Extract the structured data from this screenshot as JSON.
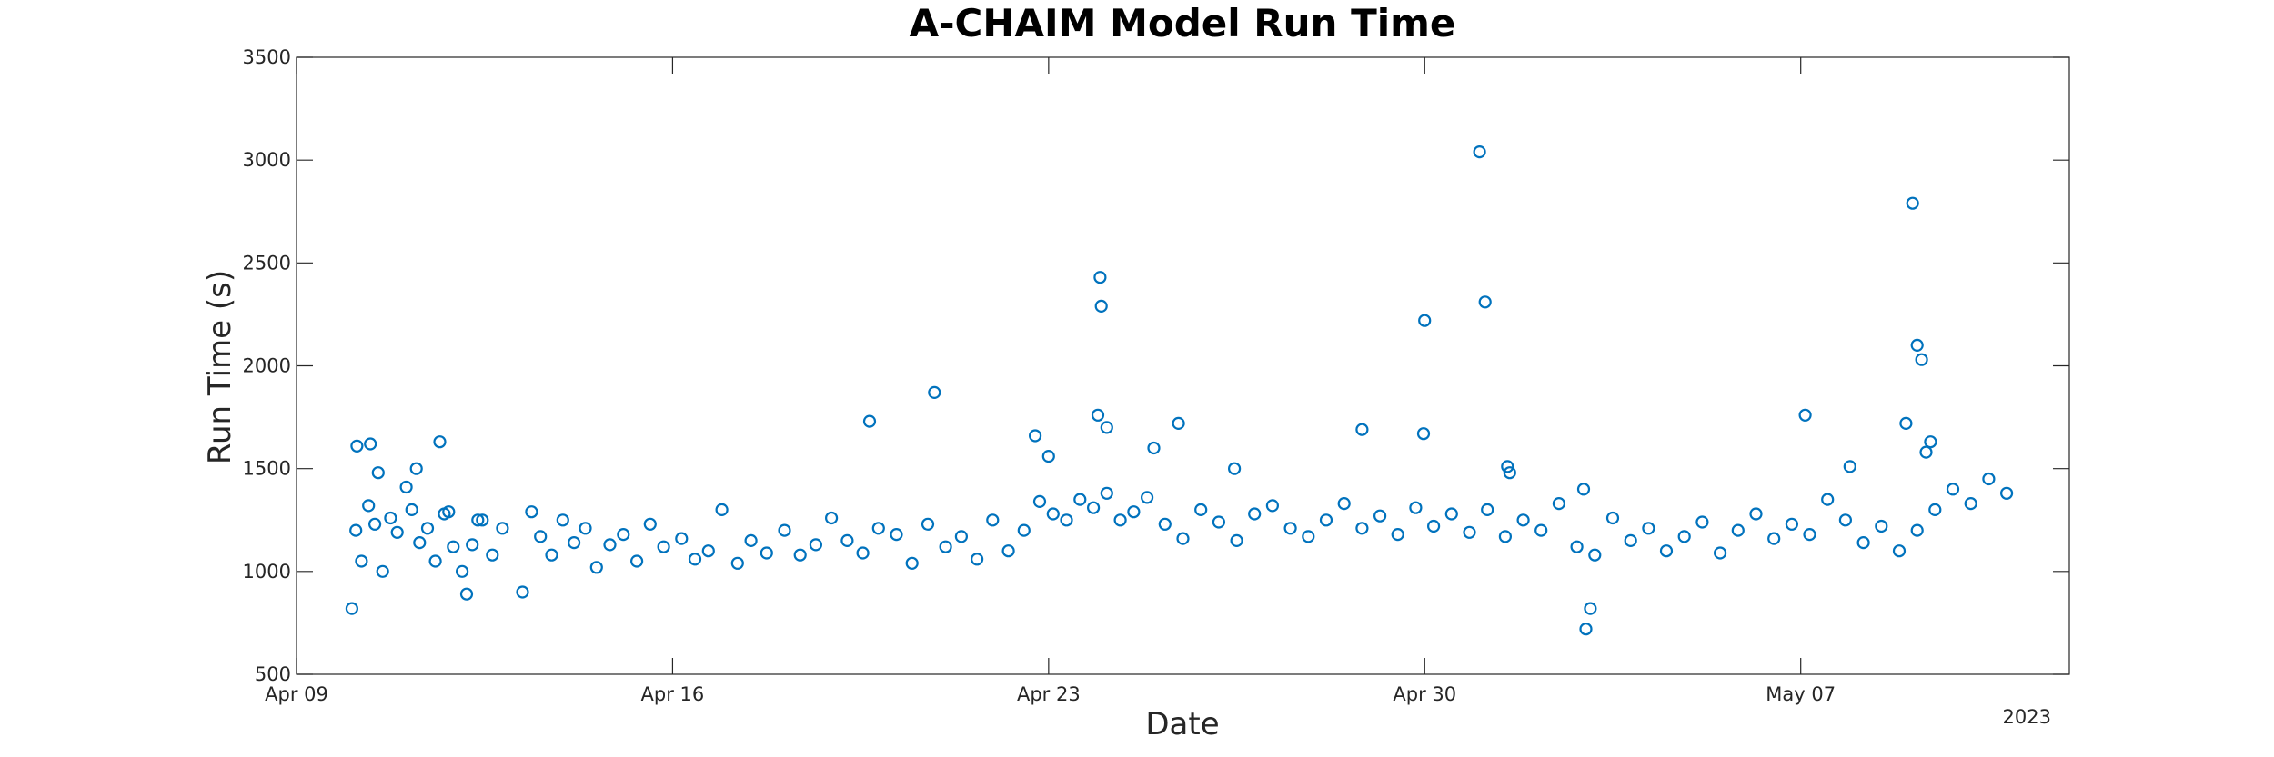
{
  "chart_data": {
    "type": "scatter",
    "title": "A-CHAIM Model Run Time",
    "xlabel": "Date",
    "ylabel": "Run Time (s)",
    "x_axis_type": "date",
    "xlim": [
      "2023-04-09",
      "2023-05-12"
    ],
    "ylim": [
      500,
      3500
    ],
    "x_ticks": [
      "Apr 09",
      "Apr 16",
      "Apr 23",
      "Apr 30",
      "May 07"
    ],
    "x_tick_dates": [
      "2023-04-09",
      "2023-04-16",
      "2023-04-23",
      "2023-04-30",
      "2023-05-07"
    ],
    "x_year_label": "2023",
    "y_ticks": [
      500,
      1000,
      1500,
      2000,
      2500,
      3000,
      3500
    ],
    "grid": false,
    "marker": "open-circle",
    "color": "#0072BD",
    "series": [
      {
        "x": [
          "2023-04-10T00:45",
          "2023-04-10T02:30",
          "2023-04-10T05:00",
          "2023-04-10T08:10",
          "2023-04-10T11:00",
          "2023-04-10T14:30",
          "2023-04-10T18:00",
          "2023-04-10T21:00",
          "2023-04-11T01:00",
          "2023-04-11T03:30",
          "2023-04-11T07:00",
          "2023-04-11T10:30",
          "2023-04-11T14:00",
          "2023-04-11T18:00",
          "2023-04-11T22:00",
          "2023-04-12T02:00",
          "2023-04-12T06:30",
          "2023-04-12T11:00",
          "2023-04-12T15:30",
          "2023-04-12T20:00",
          "2023-04-13T05:00",
          "2023-04-13T09:00",
          "2023-04-13T13:00",
          "2023-04-13T18:00",
          "2023-04-13T23:00",
          "2023-04-14T04:00",
          "2023-04-14T09:00",
          "2023-04-14T14:00",
          "2023-04-14T20:00",
          "2023-04-15T02:00",
          "2023-04-15T08:00",
          "2023-04-15T14:00",
          "2023-04-15T20:00",
          "2023-04-16T04:00",
          "2023-04-16T10:00",
          "2023-04-16T16:00",
          "2023-04-16T22:00",
          "2023-04-17T05:00",
          "2023-04-17T11:00",
          "2023-04-17T18:00",
          "2023-04-18T02:00",
          "2023-04-18T09:00",
          "2023-04-18T16:00",
          "2023-04-18T23:00",
          "2023-04-19T06:00",
          "2023-04-19T13:00",
          "2023-04-19T20:00",
          "2023-04-20T04:00",
          "2023-04-20T11:00",
          "2023-04-20T18:00",
          "2023-04-21T02:00",
          "2023-04-21T09:00",
          "2023-04-21T16:00",
          "2023-04-21T23:00",
          "2023-04-22T06:00",
          "2023-04-22T13:00",
          "2023-04-22T20:00",
          "2023-04-23T02:00",
          "2023-04-23T08:00",
          "2023-04-23T14:00",
          "2023-04-23T20:00",
          "2023-04-24T02:00",
          "2023-04-24T08:00",
          "2023-04-24T14:00",
          "2023-04-24T20:00",
          "2023-04-25T04:00",
          "2023-04-25T12:00",
          "2023-04-25T20:00",
          "2023-04-26T04:00",
          "2023-04-26T12:00",
          "2023-04-26T20:00",
          "2023-04-27T04:00",
          "2023-04-27T12:00",
          "2023-04-27T20:00",
          "2023-04-28T04:00",
          "2023-04-28T12:00",
          "2023-04-28T20:00",
          "2023-04-29T04:00",
          "2023-04-29T12:00",
          "2023-04-29T20:00",
          "2023-04-30T04:00",
          "2023-04-30T12:00",
          "2023-04-30T20:00",
          "2023-05-01T04:00",
          "2023-05-01T12:00",
          "2023-05-01T20:00",
          "2023-05-02T04:00",
          "2023-05-02T12:00",
          "2023-05-02T20:00",
          "2023-05-03T04:00",
          "2023-05-03T12:00",
          "2023-05-03T20:00",
          "2023-05-04T04:00",
          "2023-05-04T12:00",
          "2023-05-04T20:00",
          "2023-05-05T04:00",
          "2023-05-05T12:00",
          "2023-05-05T20:00",
          "2023-05-06T04:00",
          "2023-05-06T12:00",
          "2023-05-06T20:00",
          "2023-05-07T04:00",
          "2023-05-07T12:00",
          "2023-05-07T20:00",
          "2023-05-08T04:00",
          "2023-05-08T12:00",
          "2023-05-08T20:00",
          "2023-05-09T04:00",
          "2023-05-09T12:00",
          "2023-05-09T20:00",
          "2023-05-10T04:00",
          "2023-05-10T12:00",
          "2023-05-10T20:00",
          "2023-04-10T03:00",
          "2023-04-10T09:00",
          "2023-04-10T12:30",
          "2023-04-11T05:30",
          "2023-04-11T16:00",
          "2023-04-11T20:00",
          "2023-04-12T04:00",
          "2023-04-12T09:00",
          "2023-04-19T16:00",
          "2023-04-20T21:00",
          "2023-04-22T18:00",
          "2023-04-23T00:00",
          "2023-04-23T22:00",
          "2023-04-24T02:00",
          "2023-04-24T23:00",
          "2023-04-25T10:00",
          "2023-04-26T11:00",
          "2023-04-28T20:00",
          "2023-04-29T23:30",
          "2023-04-29T23:59",
          "2023-05-01T00:30",
          "2023-05-01T03:00",
          "2023-05-01T13:00",
          "2023-05-01T14:00",
          "2023-05-02T23:00",
          "2023-05-03T00:00",
          "2023-05-03T02:00",
          "2023-05-07T02:00",
          "2023-05-08T23:00",
          "2023-05-09T02:00",
          "2023-05-09T04:00",
          "2023-05-09T06:00",
          "2023-05-09T08:00",
          "2023-05-09T10:00",
          "2023-05-07T22:00",
          "2023-04-23T23:00",
          "2023-04-23T23:30"
        ],
        "y": [
          820,
          1200,
          1050,
          1320,
          1230,
          1000,
          1260,
          1190,
          1410,
          1300,
          1140,
          1210,
          1050,
          1280,
          1120,
          1000,
          1130,
          1250,
          1080,
          1210,
          900,
          1290,
          1170,
          1080,
          1250,
          1140,
          1210,
          1020,
          1130,
          1180,
          1050,
          1230,
          1120,
          1160,
          1060,
          1100,
          1300,
          1040,
          1150,
          1090,
          1200,
          1080,
          1130,
          1260,
          1150,
          1090,
          1210,
          1180,
          1040,
          1230,
          1120,
          1170,
          1060,
          1250,
          1100,
          1200,
          1340,
          1280,
          1250,
          1350,
          1310,
          1380,
          1250,
          1290,
          1360,
          1230,
          1160,
          1300,
          1240,
          1150,
          1280,
          1320,
          1210,
          1170,
          1250,
          1330,
          1210,
          1270,
          1180,
          1310,
          1220,
          1280,
          1190,
          1300,
          1170,
          1250,
          1200,
          1330,
          1120,
          1080,
          1260,
          1150,
          1210,
          1100,
          1170,
          1240,
          1090,
          1200,
          1280,
          1160,
          1230,
          1180,
          1350,
          1250,
          1140,
          1220,
          1100,
          1200,
          1300,
          1400,
          1330,
          1450,
          1380,
          1610,
          1620,
          1480,
          1500,
          1630,
          1290,
          890,
          1250,
          1730,
          1870,
          1660,
          1560,
          1760,
          1700,
          1600,
          1720,
          1500,
          1690,
          1670,
          2220,
          3040,
          2310,
          1510,
          1480,
          1400,
          720,
          820,
          1760,
          1720,
          2790,
          2100,
          2030,
          1580,
          1630,
          1510,
          2430,
          2290
        ]
      }
    ]
  }
}
